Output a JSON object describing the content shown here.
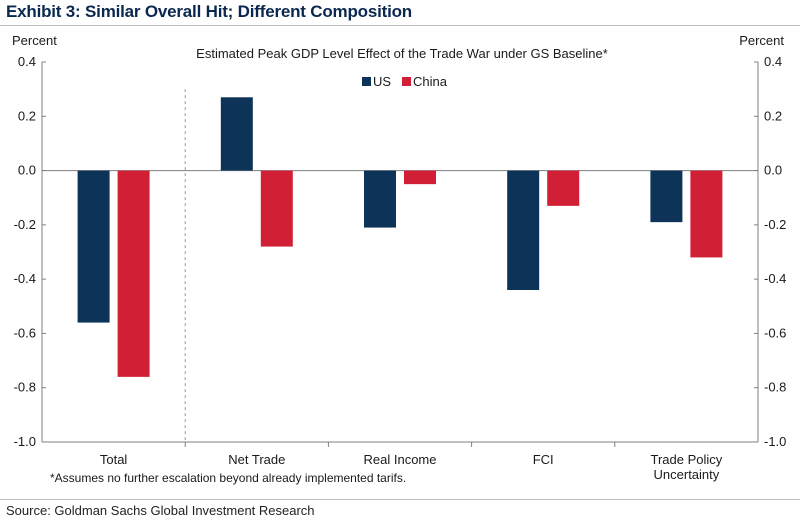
{
  "exhibit": {
    "title": "Exhibit 3: Similar Overall Hit; Different Composition",
    "source": "Source: Goldman Sachs Global Investment Research"
  },
  "colors": {
    "us": "#0d3358",
    "china": "#d11f36",
    "axis": "#7f7f7f",
    "divider": "#9a9a9a"
  },
  "chart_data": {
    "type": "bar",
    "title": "Estimated Peak  GDP Level  Effect of the Trade  War under GS Baseline*",
    "ylabel_left": "Percent",
    "ylabel_right": "Percent",
    "ylim": [
      -1.0,
      0.4
    ],
    "yticks": [
      0.4,
      0.2,
      0.0,
      -0.2,
      -0.4,
      -0.6,
      -0.8,
      -1.0
    ],
    "ytick_labels": [
      "0.4",
      "0.2",
      "0.0",
      "-0.2",
      "-0.4",
      "-0.6",
      "-0.8",
      "-1.0"
    ],
    "categories": [
      "Total",
      "Net Trade",
      "Real Income",
      "FCI",
      "Trade Policy Uncertainty"
    ],
    "category_lines": [
      [
        "Total"
      ],
      [
        "Net Trade"
      ],
      [
        "Real Income"
      ],
      [
        "FCI"
      ],
      [
        "Trade Policy",
        "Uncertainty"
      ]
    ],
    "series": [
      {
        "name": "US",
        "values": [
          -0.56,
          0.27,
          -0.21,
          -0.44,
          -0.19
        ]
      },
      {
        "name": "China",
        "values": [
          -0.76,
          -0.28,
          -0.05,
          -0.13,
          -0.32
        ]
      }
    ],
    "legend": [
      "US",
      "China"
    ],
    "legend_position": "top-center",
    "footnote": "*Assumes no further escalation beyond already implemented tarifs.",
    "divider_after_category": 0
  }
}
